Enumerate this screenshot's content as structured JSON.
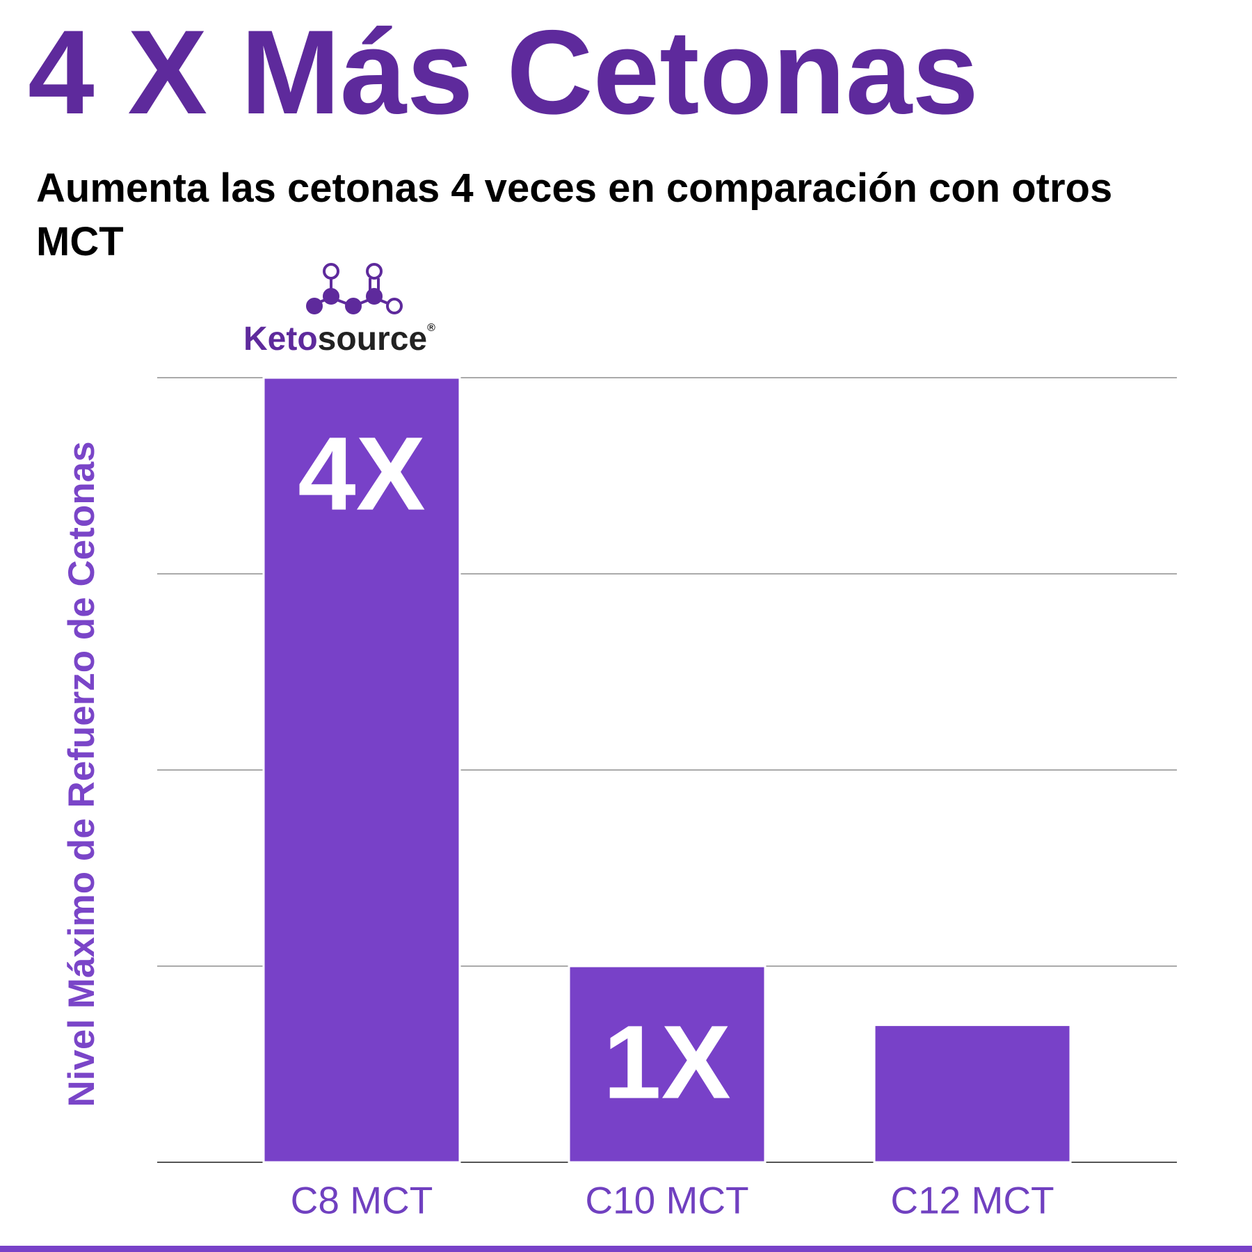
{
  "chart_data": {
    "type": "bar",
    "title": "4 X Más Cetonas",
    "subtitle": "Aumenta las cetonas 4 veces en comparación con otros MCT",
    "y_label": "Nivel Máximo de Refuerzo de Cetonas",
    "categories": [
      "C8 MCT",
      "C10 MCT",
      "C12 MCT"
    ],
    "values": [
      4,
      1,
      0.7
    ],
    "value_labels": [
      "4X",
      "1X",
      null
    ],
    "color": "#7841c8",
    "ylim": [
      0,
      4
    ],
    "yticks": [
      0,
      1,
      2,
      3,
      4
    ],
    "grid": true
  },
  "logo": {
    "text_keto": "Keto",
    "text_source": "source",
    "mark": "®"
  }
}
